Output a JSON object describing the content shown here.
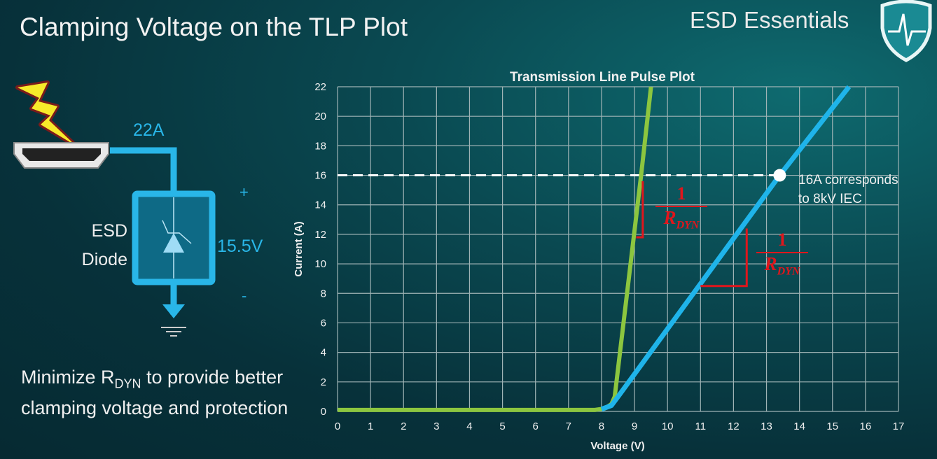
{
  "slide": {
    "title": "Clamping Voltage on the TLP Plot",
    "brand": "ESD Essentials",
    "logo_icon": "shield-heartbeat-icon",
    "bottom_text_pre": "Minimize R",
    "bottom_text_sub": "DYN",
    "bottom_text_post": " to provide better clamping voltage and protection"
  },
  "circuit": {
    "current_label": "22A",
    "voltage_label": "15.5V",
    "plus": "+",
    "minus": "-",
    "device_line1": "ESD",
    "device_line2": "Diode",
    "icons": [
      "lightning-icon",
      "hdmi-connector-icon",
      "tvs-diode-icon",
      "ground-icon"
    ],
    "wire_color": "#29b6e8"
  },
  "chart_data": {
    "type": "line",
    "title": "Transmission Line Pulse Plot",
    "xlabel": "Voltage (V)",
    "ylabel": "Current (A)",
    "xlim": [
      0,
      17
    ],
    "ylim": [
      0,
      22
    ],
    "xticks": [
      0,
      1,
      2,
      3,
      4,
      5,
      6,
      7,
      8,
      9,
      10,
      11,
      12,
      13,
      14,
      15,
      16,
      17
    ],
    "yticks": [
      0,
      2,
      4,
      6,
      8,
      10,
      12,
      14,
      16,
      18,
      20,
      22
    ],
    "grid": true,
    "series": [
      {
        "color": "#8cc63f",
        "points": [
          [
            0,
            0.1
          ],
          [
            7.8,
            0.1
          ],
          [
            8.1,
            0.2
          ],
          [
            8.3,
            0.5
          ],
          [
            8.4,
            1
          ],
          [
            9.2,
            16
          ],
          [
            9.5,
            22
          ]
        ]
      },
      {
        "color": "#1fb4ea",
        "points": [
          [
            8.0,
            0.15
          ],
          [
            8.3,
            0.4
          ],
          [
            8.5,
            1
          ],
          [
            13.4,
            16
          ],
          [
            15.5,
            22
          ]
        ]
      }
    ],
    "reference_line": {
      "y": 16,
      "x_end": 13.4,
      "style": "dashed",
      "color": "#ffffff"
    },
    "marker": {
      "x": 13.4,
      "y": 16,
      "color": "#ffffff"
    },
    "annotation_line1": "16A corresponds",
    "annotation_line2": "to 8kV IEC",
    "slope_annotations": [
      {
        "num": "1",
        "den": "R",
        "den_sub": "DYN",
        "color": "#e0161c",
        "triangle": [
          [
            9.05,
            11.8
          ],
          [
            9.25,
            11.8
          ],
          [
            9.25,
            15.6
          ]
        ]
      },
      {
        "num": "1",
        "den": "R",
        "den_sub": "DYN",
        "color": "#e0161c",
        "triangle": [
          [
            11.0,
            8.5
          ],
          [
            12.4,
            8.5
          ],
          [
            12.4,
            12.4
          ]
        ]
      }
    ]
  }
}
